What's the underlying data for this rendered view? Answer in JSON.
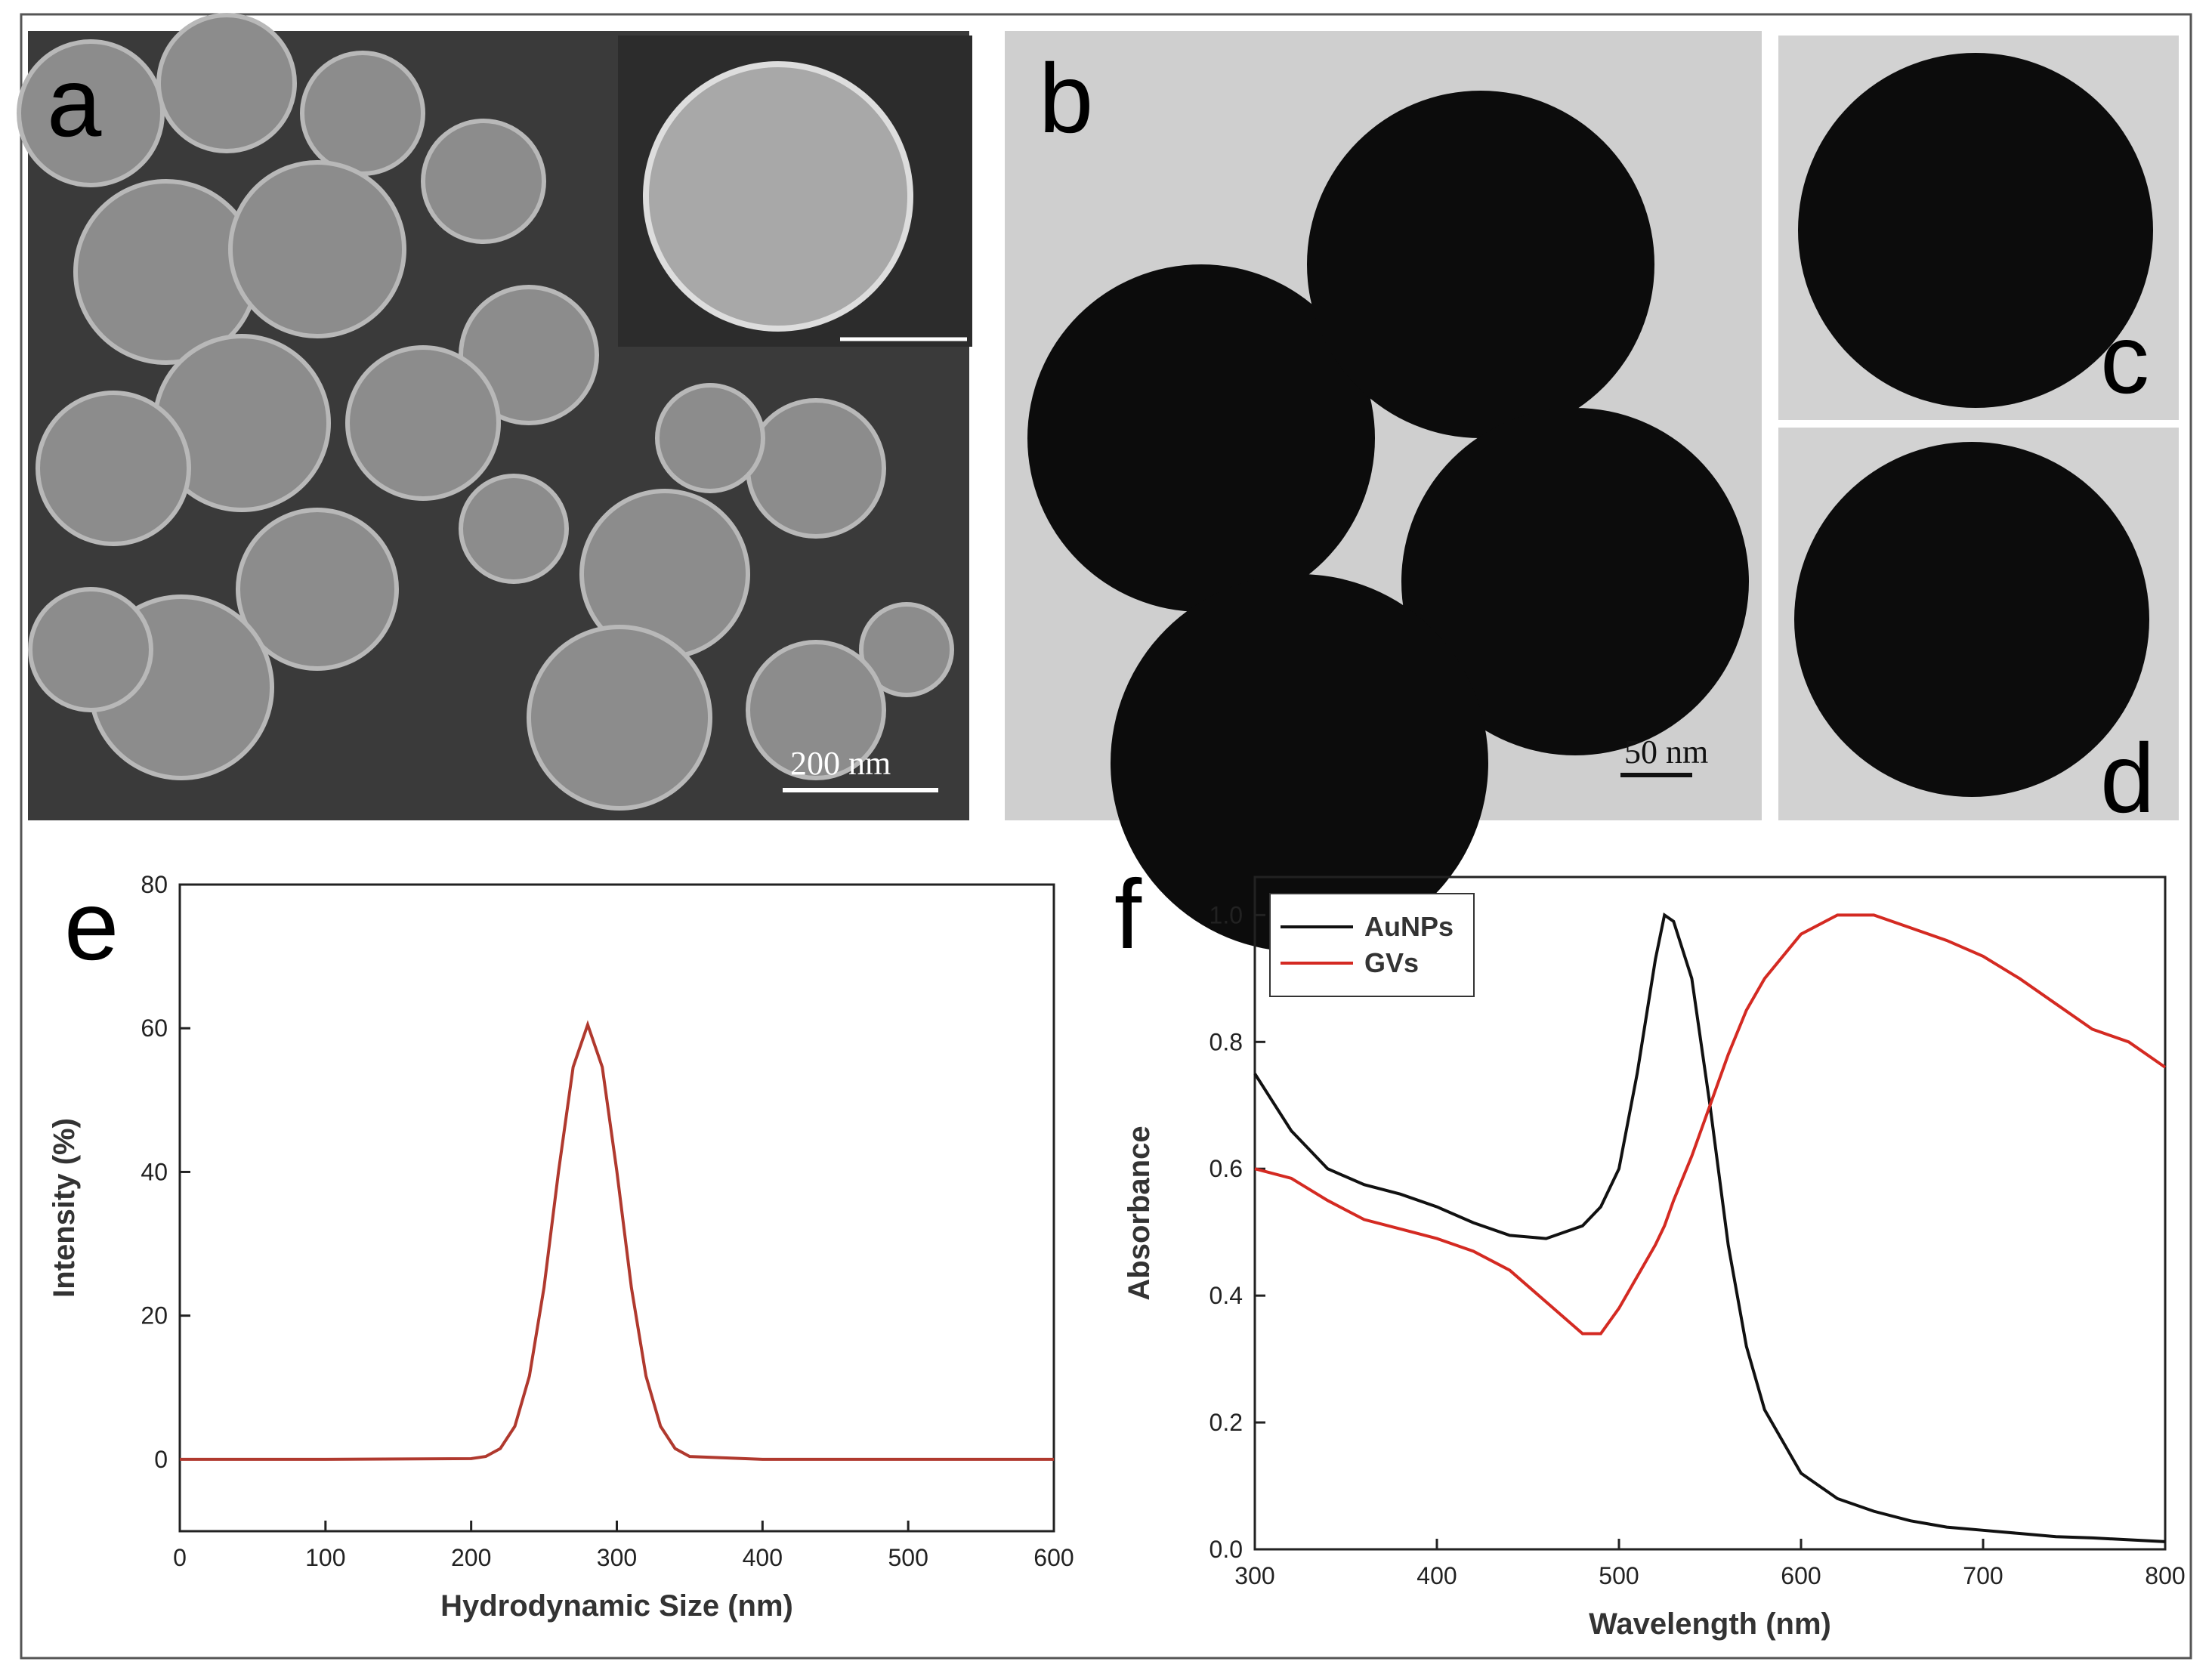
{
  "panels": [
    {
      "label": "a",
      "scale_bar": "200 nm"
    },
    {
      "label": "b",
      "scale_bar": "50 nm"
    },
    {
      "label": "c"
    },
    {
      "label": "d"
    }
  ],
  "chart_data": [
    {
      "type": "line",
      "panel": "e",
      "x_label": "Hydrodynamic Size (nm)",
      "y_label": "Intensity (%)",
      "x": [
        0,
        100,
        200,
        210,
        220,
        230,
        240,
        250,
        260,
        270,
        280,
        290,
        300,
        310,
        320,
        330,
        340,
        350,
        400,
        500,
        600
      ],
      "values": [
        0,
        0,
        0.1,
        0.4,
        1.5,
        4.6,
        11.6,
        23.9,
        40.1,
        54.6,
        60.5,
        54.6,
        40.1,
        23.9,
        11.6,
        4.6,
        1.5,
        0.4,
        0,
        0,
        0
      ],
      "color": "#b0392e",
      "xlim": [
        0,
        600
      ],
      "xticks": [
        0,
        100,
        200,
        300,
        400,
        500,
        600
      ],
      "ylim": [
        -10,
        80
      ],
      "yticks": [
        0,
        20,
        40,
        60,
        80
      ]
    },
    {
      "type": "line",
      "panel": "f",
      "x_label": "Wavelength (nm)",
      "y_label": "Absorbance",
      "x": [
        300,
        320,
        340,
        360,
        380,
        400,
        420,
        440,
        460,
        480,
        490,
        500,
        510,
        520,
        525,
        530,
        540,
        550,
        560,
        570,
        580,
        600,
        620,
        640,
        660,
        680,
        700,
        720,
        740,
        760,
        780,
        800
      ],
      "series": [
        {
          "name": "AuNPs",
          "color": "#111111",
          "values": [
            0.75,
            0.66,
            0.6,
            0.575,
            0.56,
            0.54,
            0.515,
            0.495,
            0.49,
            0.51,
            0.54,
            0.6,
            0.75,
            0.93,
            1.0,
            0.99,
            0.9,
            0.7,
            0.48,
            0.32,
            0.22,
            0.12,
            0.08,
            0.06,
            0.045,
            0.035,
            0.03,
            0.025,
            0.02,
            0.018,
            0.015,
            0.012
          ]
        },
        {
          "name": "GVs",
          "color": "#d42a22",
          "values": [
            0.6,
            0.585,
            0.55,
            0.52,
            0.505,
            0.49,
            0.47,
            0.44,
            0.39,
            0.34,
            0.34,
            0.38,
            0.43,
            0.48,
            0.51,
            0.55,
            0.62,
            0.7,
            0.78,
            0.85,
            0.9,
            0.97,
            1.0,
            1.0,
            0.98,
            0.96,
            0.935,
            0.9,
            0.86,
            0.82,
            0.8,
            0.76
          ]
        }
      ],
      "legend": "upper left",
      "xlim": [
        300,
        800
      ],
      "xticks": [
        300,
        400,
        500,
        600,
        700,
        800
      ],
      "ylim": [
        0,
        1.06
      ],
      "yticks": [
        {
          "value": 0,
          "label": "0.0"
        },
        {
          "value": 0.2,
          "label": "0.2"
        },
        {
          "value": 0.4,
          "label": "0.4"
        },
        {
          "value": 0.6,
          "label": "0.6"
        },
        {
          "value": 0.8,
          "label": "0.8"
        },
        {
          "value": 1,
          "label": "1.0"
        }
      ]
    }
  ]
}
